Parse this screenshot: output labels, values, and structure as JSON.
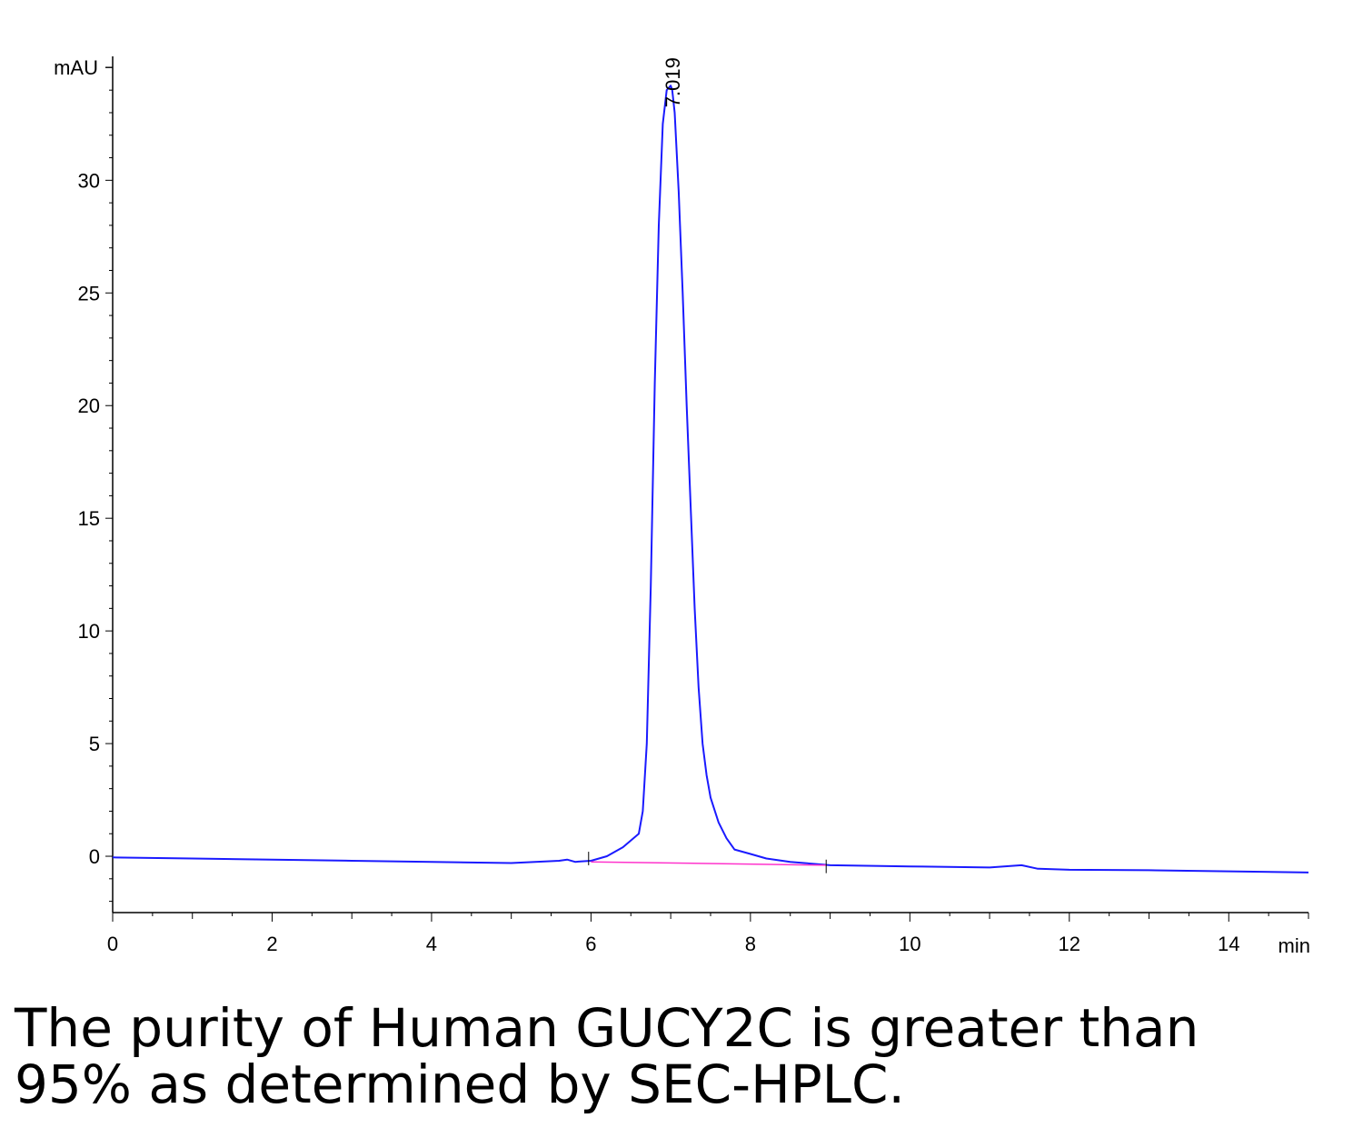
{
  "chart_data": {
    "type": "line",
    "title": "",
    "xlabel": "min",
    "ylabel": "mAU",
    "xlim": [
      0,
      15
    ],
    "ylim": [
      -2.5,
      35.5
    ],
    "x_ticks": [
      0,
      2,
      4,
      6,
      8,
      10,
      12,
      14
    ],
    "x_tick_labels": [
      "0",
      "2",
      "4",
      "6",
      "8",
      "10",
      "12",
      "14"
    ],
    "y_ticks": [
      0,
      5,
      10,
      15,
      20,
      25,
      30
    ],
    "y_tick_labels": [
      "0",
      "5",
      "10",
      "15",
      "20",
      "25",
      "30"
    ],
    "grid": false,
    "series": [
      {
        "color": "#1a1aff",
        "x": [
          0,
          1,
          2,
          3,
          4,
          5,
          5.6,
          5.7,
          5.8,
          6.0,
          6.2,
          6.4,
          6.6,
          6.65,
          6.7,
          6.75,
          6.8,
          6.85,
          6.9,
          6.95,
          7.0,
          7.019,
          7.05,
          7.1,
          7.15,
          7.2,
          7.25,
          7.3,
          7.35,
          7.4,
          7.45,
          7.5,
          7.6,
          7.7,
          7.8,
          8.0,
          8.2,
          8.5,
          9.0,
          10,
          11,
          11.4,
          11.6,
          12,
          13,
          14,
          15
        ],
        "y": [
          -0.05,
          -0.1,
          -0.15,
          -0.2,
          -0.25,
          -0.3,
          -0.2,
          -0.15,
          -0.25,
          -0.2,
          0.0,
          0.4,
          1.0,
          2.0,
          5.0,
          12.0,
          21.0,
          28.0,
          32.5,
          34.0,
          34.2,
          34.0,
          33.0,
          29.5,
          25.0,
          20.0,
          15.5,
          11.0,
          7.5,
          5.0,
          3.6,
          2.6,
          1.5,
          0.8,
          0.3,
          0.1,
          -0.1,
          -0.25,
          -0.4,
          -0.45,
          -0.5,
          -0.4,
          -0.55,
          -0.6,
          -0.62,
          -0.67,
          -0.72
        ]
      },
      {
        "color": "#ff33cc",
        "x": [
          6.0,
          8.95
        ],
        "y": [
          -0.25,
          -0.4
        ]
      }
    ],
    "annotations": [
      {
        "text": "7.019",
        "x": 7.019,
        "y": 34.2
      }
    ]
  },
  "caption": {
    "line1": "The purity of Human GUCY2C is greater than",
    "line2": "95% as determined by SEC-HPLC."
  }
}
